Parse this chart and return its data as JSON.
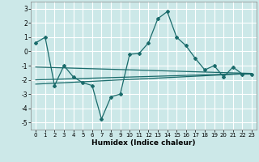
{
  "xlabel": "Humidex (Indice chaleur)",
  "xlim": [
    -0.5,
    23.5
  ],
  "ylim": [
    -5.5,
    3.5
  ],
  "yticks": [
    -5,
    -4,
    -3,
    -2,
    -1,
    0,
    1,
    2,
    3
  ],
  "xticks": [
    0,
    1,
    2,
    3,
    4,
    5,
    6,
    7,
    8,
    9,
    10,
    11,
    12,
    13,
    14,
    15,
    16,
    17,
    18,
    19,
    20,
    21,
    22,
    23
  ],
  "bg_color": "#cce8e8",
  "line_color": "#1a6b6b",
  "grid_color": "#ffffff",
  "main_y": [
    0.6,
    1.0,
    -2.4,
    -1.0,
    -1.8,
    -2.2,
    -2.4,
    -4.75,
    -3.2,
    -3.0,
    -0.2,
    -0.15,
    0.6,
    2.3,
    2.8,
    1.0,
    0.4,
    -0.5,
    -1.3,
    -1.0,
    -1.8,
    -1.1,
    -1.6,
    -1.6
  ],
  "trend1": [
    -1.1,
    -1.55
  ],
  "trend2": [
    -2.3,
    -1.55
  ],
  "trend3": [
    -2.0,
    -1.55
  ],
  "trend_x": [
    0,
    23
  ]
}
